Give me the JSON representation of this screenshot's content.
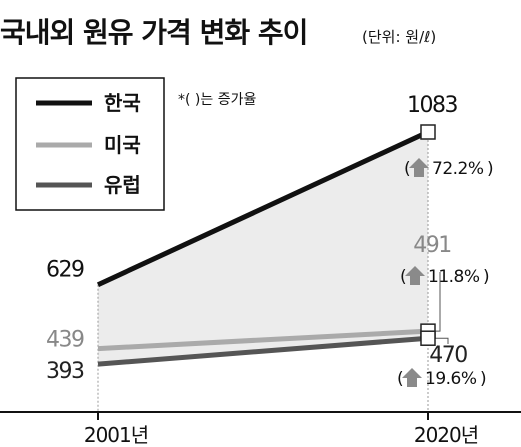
{
  "chart_data": {
    "type": "line",
    "title": "국내외 원유 가격 변화 추이",
    "unit_note": "(단위: 원/ℓ)",
    "change_note": "*( )는 증가율",
    "categories": [
      "2001년",
      "2020년"
    ],
    "ylim": [
      300,
      1150
    ],
    "grid": false,
    "legend_position": "top-left",
    "series": [
      {
        "name": "한국",
        "values": [
          629,
          1083
        ],
        "value_labels": [
          "629",
          "1083"
        ],
        "change": "72.2%",
        "color": "#111111",
        "label_color": "#111111"
      },
      {
        "name": "미국",
        "values": [
          439,
          491
        ],
        "value_labels": [
          "439",
          "491"
        ],
        "change": "11.8%",
        "color": "#aaaaaa",
        "label_color": "#888888"
      },
      {
        "name": "유럽",
        "values": [
          393,
          470
        ],
        "value_labels": [
          "393",
          "470"
        ],
        "change": "19.6%",
        "color": "#555555",
        "label_color": "#222222"
      }
    ],
    "colors": {
      "area_fill": "#ececec",
      "arrow": "#8a8a8a",
      "axis": "#111111"
    }
  }
}
